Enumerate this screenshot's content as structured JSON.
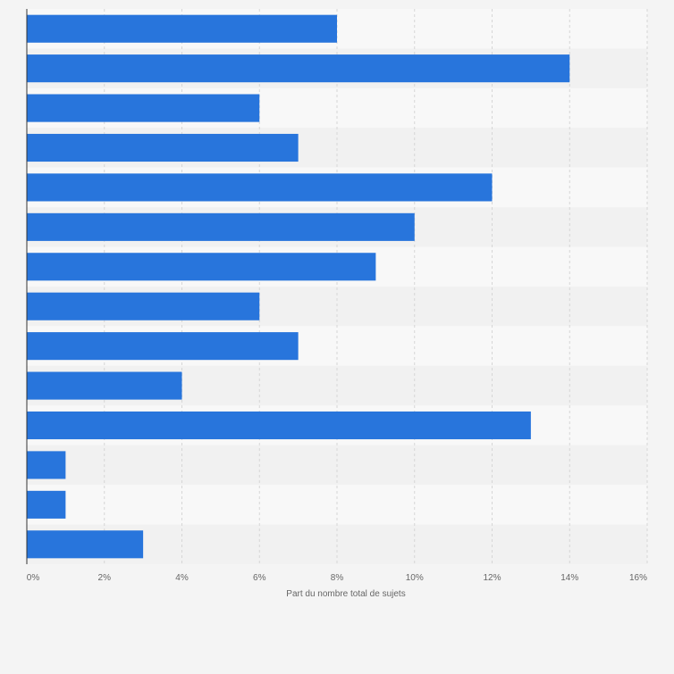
{
  "chart_data": {
    "type": "bar",
    "orientation": "horizontal",
    "categories": [
      "",
      "",
      "",
      "",
      "",
      "",
      "",
      "",
      "",
      "",
      "",
      "",
      "",
      ""
    ],
    "values": [
      8,
      14,
      6,
      7,
      12,
      10,
      9,
      6,
      7,
      4,
      13,
      1,
      1,
      3
    ],
    "xlabel": "Part du nombre total de sujets",
    "ylabel": "",
    "xlim": [
      0,
      16
    ],
    "xticks": [
      "0%",
      "2%",
      "4%",
      "6%",
      "8%",
      "10%",
      "12%",
      "14%",
      "16%"
    ],
    "grid": true,
    "colors": {
      "bar": "#2875dc",
      "band_light": "#f8f8f8",
      "band_dark": "#f1f1f1",
      "grid": "#d6d6d6",
      "axis": "#333333",
      "tick_text": "#666666"
    }
  }
}
